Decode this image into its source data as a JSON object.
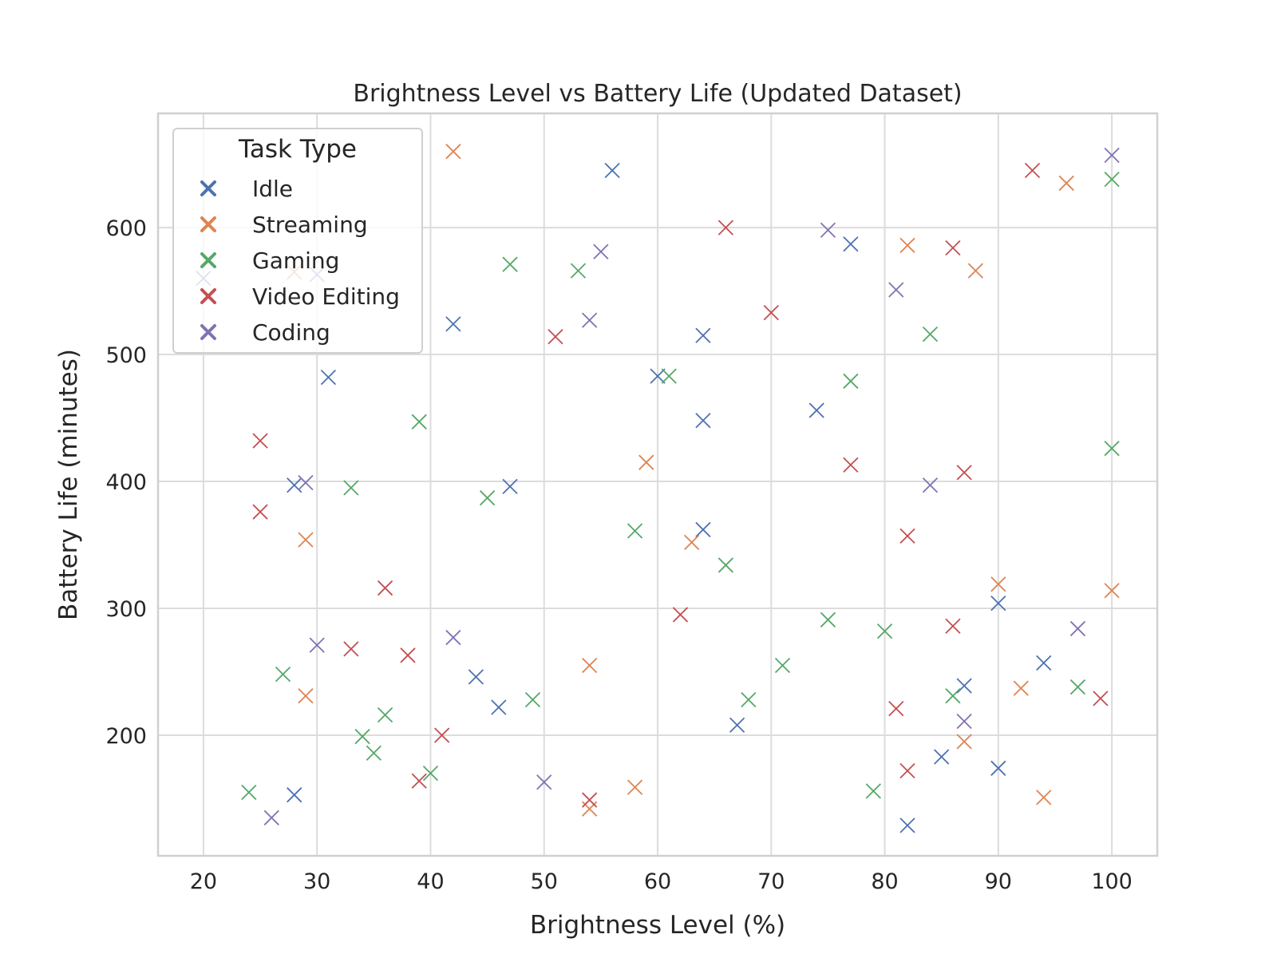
{
  "chart_data": {
    "type": "scatter",
    "title": "Brightness Level vs Battery Life (Updated Dataset)",
    "xlabel": "Brightness Level (%)",
    "ylabel": "Battery Life (minutes)",
    "xlim": [
      16,
      104
    ],
    "ylim": [
      105,
      690
    ],
    "x_ticks": [
      20,
      30,
      40,
      50,
      60,
      70,
      80,
      90,
      100
    ],
    "y_ticks": [
      200,
      300,
      400,
      500,
      600
    ],
    "x_tick_labels": [
      "20",
      "30",
      "40",
      "50",
      "60",
      "70",
      "80",
      "90",
      "100"
    ],
    "y_tick_labels": [
      "200",
      "300",
      "400",
      "500",
      "600"
    ],
    "grid": true,
    "marker": "x",
    "legend": {
      "title": "Task Type",
      "placement": "top-left"
    },
    "series": [
      {
        "name": "Idle",
        "color": "#4c72b0",
        "points": [
          [
            20,
            560
          ],
          [
            31,
            482
          ],
          [
            42,
            524
          ],
          [
            56,
            645
          ],
          [
            60,
            483
          ],
          [
            64,
            515
          ],
          [
            64,
            448
          ],
          [
            77,
            587
          ],
          [
            74,
            456
          ],
          [
            47,
            396
          ],
          [
            64,
            362
          ],
          [
            28,
            397
          ],
          [
            44,
            246
          ],
          [
            46,
            222
          ],
          [
            67,
            208
          ],
          [
            28,
            153
          ],
          [
            90,
            304
          ],
          [
            94,
            257
          ],
          [
            87,
            239
          ],
          [
            85,
            183
          ],
          [
            90,
            174
          ],
          [
            82,
            129
          ]
        ]
      },
      {
        "name": "Streaming",
        "color": "#dd8452",
        "points": [
          [
            42,
            660
          ],
          [
            28,
            565
          ],
          [
            96,
            635
          ],
          [
            82,
            586
          ],
          [
            88,
            566
          ],
          [
            59,
            415
          ],
          [
            63,
            352
          ],
          [
            29,
            354
          ],
          [
            29,
            231
          ],
          [
            54,
            255
          ],
          [
            58,
            159
          ],
          [
            54,
            142
          ],
          [
            90,
            319
          ],
          [
            100,
            314
          ],
          [
            92,
            237
          ],
          [
            87,
            195
          ],
          [
            94,
            151
          ]
        ]
      },
      {
        "name": "Gaming",
        "color": "#55a868",
        "points": [
          [
            47,
            571
          ],
          [
            53,
            566
          ],
          [
            100,
            638
          ],
          [
            84,
            516
          ],
          [
            61,
            483
          ],
          [
            77,
            479
          ],
          [
            39,
            447
          ],
          [
            33,
            395
          ],
          [
            45,
            387
          ],
          [
            58,
            361
          ],
          [
            66,
            334
          ],
          [
            100,
            426
          ],
          [
            75,
            291
          ],
          [
            80,
            282
          ],
          [
            71,
            255
          ],
          [
            68,
            228
          ],
          [
            49,
            228
          ],
          [
            27,
            248
          ],
          [
            36,
            216
          ],
          [
            34,
            199
          ],
          [
            35,
            186
          ],
          [
            40,
            170
          ],
          [
            24,
            155
          ],
          [
            79,
            156
          ],
          [
            86,
            231
          ],
          [
            97,
            238
          ]
        ]
      },
      {
        "name": "Video Editing",
        "color": "#c44e52",
        "points": [
          [
            66,
            600
          ],
          [
            93,
            645
          ],
          [
            86,
            584
          ],
          [
            70,
            533
          ],
          [
            51,
            514
          ],
          [
            25,
            432
          ],
          [
            25,
            376
          ],
          [
            77,
            413
          ],
          [
            87,
            407
          ],
          [
            82,
            357
          ],
          [
            36,
            316
          ],
          [
            62,
            295
          ],
          [
            33,
            268
          ],
          [
            38,
            263
          ],
          [
            86,
            286
          ],
          [
            41,
            200
          ],
          [
            39,
            164
          ],
          [
            54,
            149
          ],
          [
            81,
            221
          ],
          [
            82,
            172
          ],
          [
            99,
            229
          ]
        ]
      },
      {
        "name": "Coding",
        "color": "#8172b2",
        "points": [
          [
            100,
            657
          ],
          [
            75,
            598
          ],
          [
            55,
            581
          ],
          [
            30,
            563
          ],
          [
            81,
            551
          ],
          [
            54,
            527
          ],
          [
            29,
            399
          ],
          [
            84,
            397
          ],
          [
            30,
            271
          ],
          [
            42,
            277
          ],
          [
            97,
            284
          ],
          [
            87,
            211
          ],
          [
            50,
            163
          ],
          [
            26,
            135
          ]
        ]
      }
    ]
  }
}
